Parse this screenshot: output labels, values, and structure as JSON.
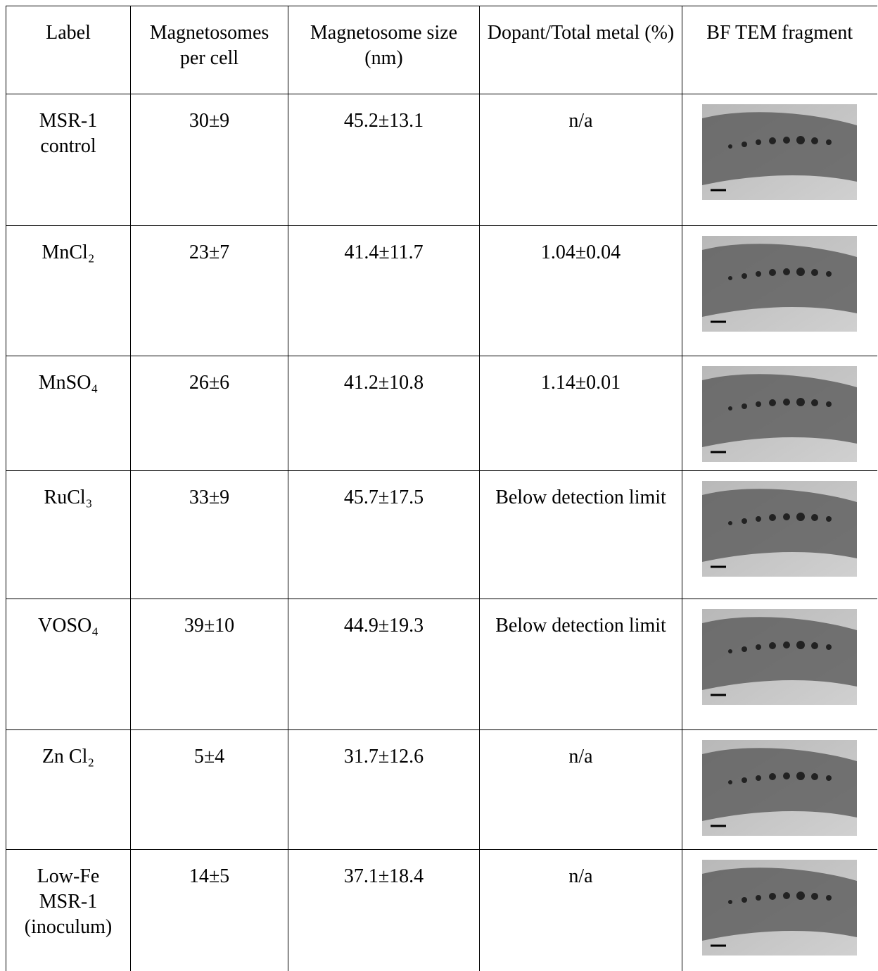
{
  "table": {
    "headers": [
      "Label",
      "Magnetosomes per cell",
      "Magnetosome size (nm)",
      "Dopant/Total metal (%)",
      "BF TEM fragment"
    ],
    "rows": [
      [
        "MSR-1 control",
        "30±9",
        "45.2±13.1",
        "n/a"
      ],
      [
        "MnCl₂",
        "23±7",
        "41.4±11.7",
        "1.04±0.04"
      ],
      [
        "MnSO₄",
        "26±6",
        "41.2±10.8",
        "1.14±0.01"
      ],
      [
        "RuCl₃",
        "33±9",
        "45.7±17.5",
        "Below detection limit"
      ],
      [
        "VOSO₄",
        "39±10",
        "44.9±19.3",
        "Below detection limit"
      ],
      [
        "Zn Cl₂",
        "5±4",
        "31.7±12.6",
        "n/a"
      ],
      [
        "Low-Fe MSR-1 (inoculum)",
        "14±5",
        "37.1±18.4",
        "n/a"
      ]
    ]
  }
}
